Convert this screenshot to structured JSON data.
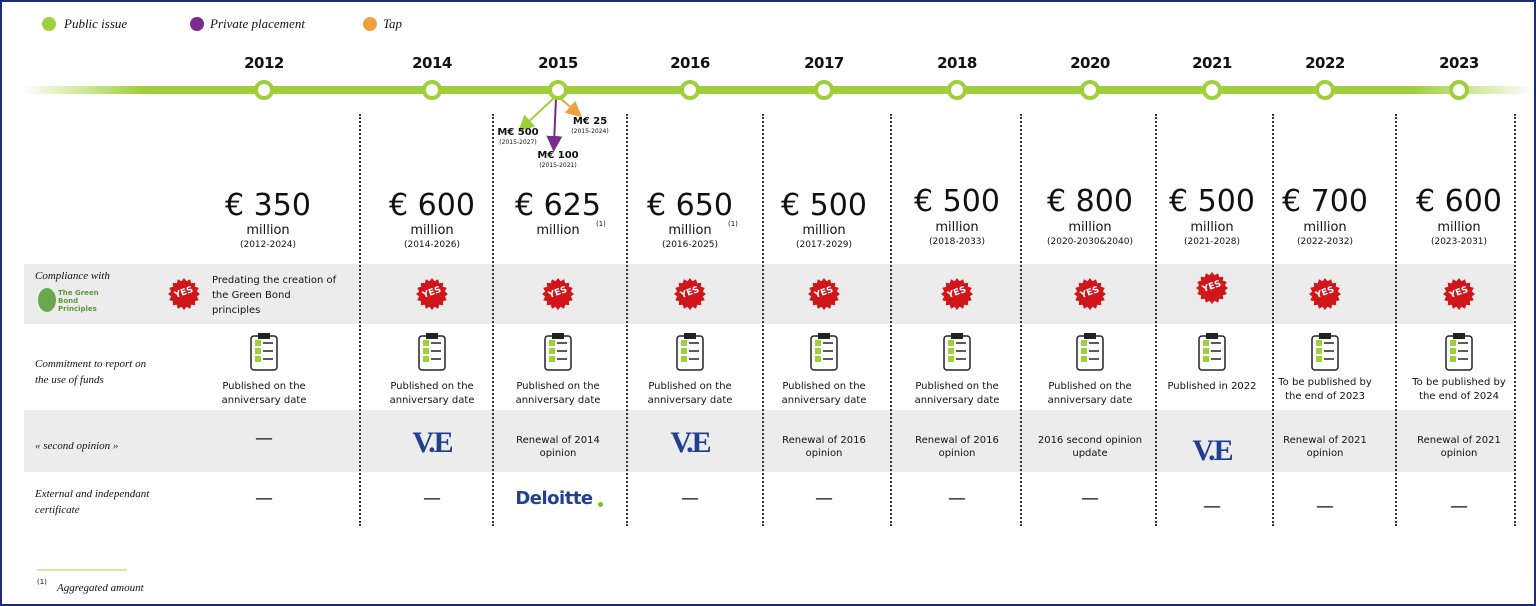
{
  "legend": [
    "Public issue",
    "Private placement",
    "Tap"
  ],
  "row_labels": {
    "compliance": "Compliance with",
    "gbp_logo": "The Green Bond Principles",
    "report": "Commitment to report on the use of funds",
    "opinion": "« second opinion »",
    "certificate": "External and independant certificate"
  },
  "sub_issues": [
    {
      "amount": "M€ 500",
      "period": "(2015-2027)"
    },
    {
      "amount": "M€ 100",
      "period": "(2015-2021)"
    },
    {
      "amount": "M€ 25",
      "period": "(2015-2024)"
    }
  ],
  "columns": [
    {
      "year": "2012",
      "amount": "€ 350",
      "unit": "million",
      "period": "(2012-2024)",
      "badge": "YES",
      "compliance_note": "Predating the creation of the Green Bond principles",
      "report": "Published on the anniversary date",
      "opinion": "—",
      "certificate": "—"
    },
    {
      "year": "2014",
      "amount": "€ 600",
      "unit": "million",
      "period": "(2014-2026)",
      "badge": "YES",
      "report": "Published on the anniversary date",
      "opinion_logo": "V.E",
      "certificate": "—"
    },
    {
      "year": "2015",
      "amount": "€ 625",
      "unit": "million",
      "note": "(1)",
      "badge": "YES",
      "report": "Published on the anniversary date",
      "opinion": "Renewal of 2014 opinion",
      "certificate_logo": "Deloitte"
    },
    {
      "year": "2016",
      "amount": "€ 650",
      "unit": "million",
      "note": "(1)",
      "period": "(2016-2025)",
      "badge": "YES",
      "report": "Published on the anniversary date",
      "opinion_logo": "V.E",
      "certificate": "—"
    },
    {
      "year": "2017",
      "amount": "€ 500",
      "unit": "million",
      "period": "(2017-2029)",
      "badge": "YES",
      "report": "Published on the anniversary date",
      "opinion": "Renewal of 2016 opinion",
      "certificate": "—"
    },
    {
      "year": "2018",
      "amount": "€ 500",
      "unit": "million",
      "period": "(2018-2033)",
      "badge": "YES",
      "report": "Published on the anniversary date",
      "opinion": "Renewal of 2016 opinion",
      "certificate": "—"
    },
    {
      "year": "2020",
      "amount": "€ 800",
      "unit": "million",
      "period": "(2020-2030&2040)",
      "badge": "YES",
      "report": "Published on the anniversary date",
      "opinion": "2016 second opinion update",
      "certificate": "—"
    },
    {
      "year": "2021",
      "amount": "€ 500",
      "unit": "million",
      "period": "(2021-2028)",
      "badge": "YES",
      "report": "Published in 2022",
      "opinion_logo": "V.E",
      "certificate": "—"
    },
    {
      "year": "2022",
      "amount": "€ 700",
      "unit": "million",
      "period": "(2022-2032)",
      "badge": "YES",
      "report": "To be published by the end of 2023",
      "opinion": "Renewal of 2021 opinion",
      "certificate": "—"
    },
    {
      "year": "2023",
      "amount": "€ 600",
      "unit": "million",
      "period": "(2023-2031)",
      "badge": "YES",
      "report": "To be published by the end of 2024",
      "opinion": "Renewal of 2021 opinion",
      "certificate": "—"
    }
  ],
  "footnote": {
    "mark": "(1)",
    "text": "Aggregated amount"
  }
}
